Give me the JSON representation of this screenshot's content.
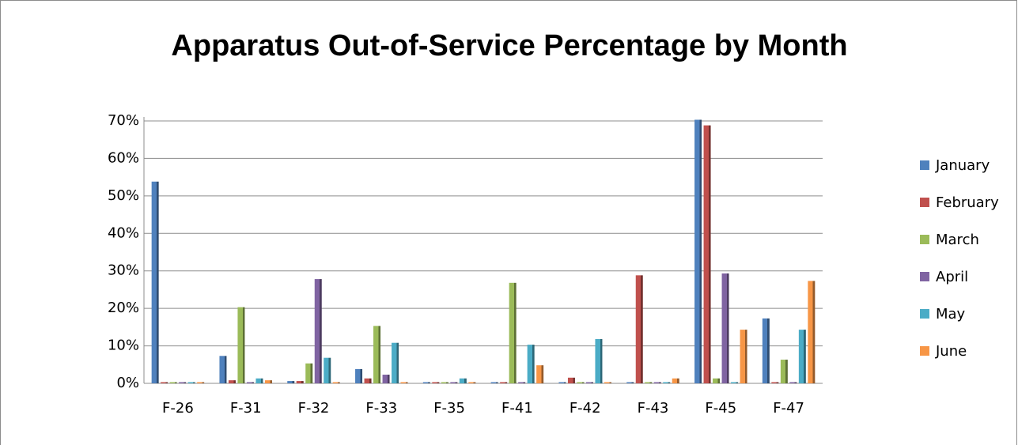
{
  "chart_data": {
    "type": "bar",
    "title": "Apparatus Out-of-Service Percentage by Month",
    "categories": [
      "F-26",
      "F-31",
      "F-32",
      "F-33",
      "F-35",
      "F-41",
      "F-42",
      "F-43",
      "F-45",
      "F-47"
    ],
    "series": [
      {
        "name": "January",
        "color": "#4f81bd",
        "values": [
          53.5,
          7,
          0.3,
          3.5,
          0,
          0,
          0,
          0,
          70,
          17
        ]
      },
      {
        "name": "February",
        "color": "#c0504d",
        "values": [
          0,
          0.5,
          0.3,
          1,
          0,
          0,
          1.2,
          28.5,
          68.5,
          0
        ]
      },
      {
        "name": "March",
        "color": "#9bbb59",
        "values": [
          0,
          20,
          5,
          15,
          0,
          26.5,
          0,
          0,
          1,
          6
        ]
      },
      {
        "name": "April",
        "color": "#8064a2",
        "values": [
          0,
          0,
          27.5,
          2,
          0,
          0,
          0,
          0,
          29,
          0
        ]
      },
      {
        "name": "May",
        "color": "#4bacc6",
        "values": [
          0,
          1,
          6.5,
          10.5,
          1,
          10,
          11.5,
          0,
          0,
          14
        ]
      },
      {
        "name": "June",
        "color": "#f79646",
        "values": [
          0,
          0.5,
          0,
          0,
          0,
          4.5,
          0,
          1,
          14,
          27
        ]
      }
    ],
    "ylim": [
      0,
      70
    ],
    "yticks": [
      {
        "value": 0,
        "label": "0%"
      },
      {
        "value": 10,
        "label": "10%"
      },
      {
        "value": 20,
        "label": "20%"
      },
      {
        "value": 30,
        "label": "30%"
      },
      {
        "value": 40,
        "label": "40%"
      },
      {
        "value": 50,
        "label": "50%"
      },
      {
        "value": 60,
        "label": "60%"
      },
      {
        "value": 70,
        "label": "70%"
      }
    ],
    "grid": true,
    "legend": "right"
  }
}
